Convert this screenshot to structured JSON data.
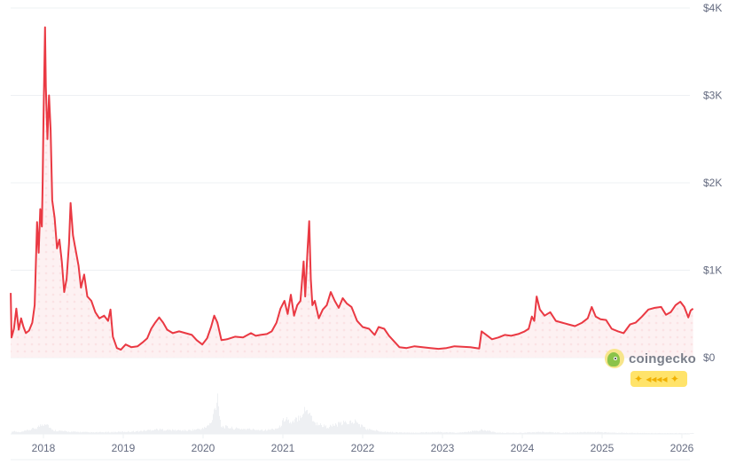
{
  "chart_data": {
    "type": "line",
    "title": "",
    "xlabel": "",
    "ylabel": "",
    "currency": "USD",
    "ylim": [
      0,
      4000
    ],
    "y_ticks": [
      {
        "value": 0,
        "label": "$0"
      },
      {
        "value": 1000,
        "label": "$1K"
      },
      {
        "value": 2000,
        "label": "$2K"
      },
      {
        "value": 3000,
        "label": "$3K"
      },
      {
        "value": 4000,
        "label": "$4K"
      }
    ],
    "x_ticks": [
      "2018",
      "2019",
      "2020",
      "2021",
      "2022",
      "2023",
      "2024",
      "2025",
      "2026"
    ],
    "xlim": [
      2017.59,
      2026.14
    ],
    "grid": {
      "horizontal": true,
      "vertical": false
    },
    "legend": null,
    "line_color": "#ea3943",
    "fill_color": "#fde8e9",
    "series": [
      {
        "name": "Price",
        "points": [
          [
            2017.59,
            740
          ],
          [
            2017.6,
            230
          ],
          [
            2017.63,
            330
          ],
          [
            2017.66,
            560
          ],
          [
            2017.69,
            320
          ],
          [
            2017.72,
            450
          ],
          [
            2017.75,
            350
          ],
          [
            2017.78,
            280
          ],
          [
            2017.82,
            310
          ],
          [
            2017.86,
            400
          ],
          [
            2017.89,
            600
          ],
          [
            2017.92,
            1550
          ],
          [
            2017.94,
            1200
          ],
          [
            2017.96,
            1700
          ],
          [
            2017.98,
            1500
          ],
          [
            2017.99,
            2000
          ],
          [
            2018.0,
            2700
          ],
          [
            2018.02,
            3780
          ],
          [
            2018.03,
            3100
          ],
          [
            2018.05,
            2500
          ],
          [
            2018.07,
            3000
          ],
          [
            2018.09,
            2600
          ],
          [
            2018.11,
            1800
          ],
          [
            2018.14,
            1600
          ],
          [
            2018.17,
            1250
          ],
          [
            2018.2,
            1350
          ],
          [
            2018.23,
            1100
          ],
          [
            2018.26,
            750
          ],
          [
            2018.29,
            900
          ],
          [
            2018.32,
            1300
          ],
          [
            2018.34,
            1770
          ],
          [
            2018.37,
            1400
          ],
          [
            2018.4,
            1250
          ],
          [
            2018.44,
            1050
          ],
          [
            2018.47,
            800
          ],
          [
            2018.51,
            950
          ],
          [
            2018.55,
            700
          ],
          [
            2018.6,
            650
          ],
          [
            2018.65,
            520
          ],
          [
            2018.7,
            450
          ],
          [
            2018.76,
            480
          ],
          [
            2018.81,
            420
          ],
          [
            2018.84,
            550
          ],
          [
            2018.87,
            240
          ],
          [
            2018.92,
            110
          ],
          [
            2018.97,
            90
          ],
          [
            2019.03,
            150
          ],
          [
            2019.1,
            120
          ],
          [
            2019.18,
            130
          ],
          [
            2019.25,
            180
          ],
          [
            2019.3,
            220
          ],
          [
            2019.35,
            330
          ],
          [
            2019.4,
            400
          ],
          [
            2019.45,
            460
          ],
          [
            2019.5,
            400
          ],
          [
            2019.55,
            320
          ],
          [
            2019.62,
            280
          ],
          [
            2019.7,
            300
          ],
          [
            2019.78,
            280
          ],
          [
            2019.86,
            260
          ],
          [
            2019.92,
            200
          ],
          [
            2019.99,
            150
          ],
          [
            2020.05,
            220
          ],
          [
            2020.1,
            350
          ],
          [
            2020.14,
            480
          ],
          [
            2020.18,
            400
          ],
          [
            2020.23,
            200
          ],
          [
            2020.3,
            210
          ],
          [
            2020.4,
            240
          ],
          [
            2020.5,
            230
          ],
          [
            2020.6,
            280
          ],
          [
            2020.66,
            250
          ],
          [
            2020.72,
            260
          ],
          [
            2020.8,
            270
          ],
          [
            2020.86,
            300
          ],
          [
            2020.92,
            400
          ],
          [
            2020.97,
            560
          ],
          [
            2021.02,
            650
          ],
          [
            2021.06,
            500
          ],
          [
            2021.1,
            720
          ],
          [
            2021.14,
            480
          ],
          [
            2021.18,
            600
          ],
          [
            2021.22,
            650
          ],
          [
            2021.26,
            1100
          ],
          [
            2021.28,
            700
          ],
          [
            2021.31,
            1250
          ],
          [
            2021.33,
            1560
          ],
          [
            2021.35,
            900
          ],
          [
            2021.37,
            600
          ],
          [
            2021.4,
            650
          ],
          [
            2021.45,
            450
          ],
          [
            2021.5,
            550
          ],
          [
            2021.55,
            600
          ],
          [
            2021.6,
            750
          ],
          [
            2021.65,
            650
          ],
          [
            2021.7,
            570
          ],
          [
            2021.75,
            680
          ],
          [
            2021.8,
            620
          ],
          [
            2021.86,
            580
          ],
          [
            2021.93,
            420
          ],
          [
            2022.0,
            350
          ],
          [
            2022.08,
            330
          ],
          [
            2022.15,
            260
          ],
          [
            2022.2,
            350
          ],
          [
            2022.27,
            330
          ],
          [
            2022.33,
            250
          ],
          [
            2022.4,
            180
          ],
          [
            2022.46,
            120
          ],
          [
            2022.55,
            110
          ],
          [
            2022.65,
            130
          ],
          [
            2022.75,
            120
          ],
          [
            2022.85,
            110
          ],
          [
            2022.95,
            100
          ],
          [
            2023.05,
            110
          ],
          [
            2023.15,
            130
          ],
          [
            2023.25,
            125
          ],
          [
            2023.35,
            120
          ],
          [
            2023.46,
            105
          ],
          [
            2023.49,
            300
          ],
          [
            2023.55,
            260
          ],
          [
            2023.62,
            210
          ],
          [
            2023.7,
            230
          ],
          [
            2023.78,
            260
          ],
          [
            2023.86,
            250
          ],
          [
            2023.95,
            270
          ],
          [
            2024.03,
            300
          ],
          [
            2024.08,
            330
          ],
          [
            2024.12,
            470
          ],
          [
            2024.15,
            420
          ],
          [
            2024.18,
            700
          ],
          [
            2024.22,
            550
          ],
          [
            2024.28,
            480
          ],
          [
            2024.35,
            520
          ],
          [
            2024.42,
            420
          ],
          [
            2024.5,
            400
          ],
          [
            2024.58,
            380
          ],
          [
            2024.66,
            360
          ],
          [
            2024.75,
            400
          ],
          [
            2024.82,
            450
          ],
          [
            2024.87,
            580
          ],
          [
            2024.92,
            470
          ],
          [
            2024.98,
            440
          ],
          [
            2025.05,
            430
          ],
          [
            2025.12,
            330
          ],
          [
            2025.2,
            300
          ],
          [
            2025.27,
            280
          ],
          [
            2025.35,
            380
          ],
          [
            2025.42,
            400
          ],
          [
            2025.5,
            470
          ],
          [
            2025.58,
            550
          ],
          [
            2025.66,
            570
          ],
          [
            2025.74,
            580
          ],
          [
            2025.8,
            490
          ],
          [
            2025.86,
            520
          ],
          [
            2025.92,
            600
          ],
          [
            2025.98,
            640
          ],
          [
            2026.03,
            580
          ],
          [
            2026.08,
            460
          ],
          [
            2026.11,
            540
          ],
          [
            2026.14,
            560
          ]
        ]
      },
      {
        "name": "Volume",
        "axis": "secondary-bottom",
        "color": "#eef0f3",
        "points": [
          [
            2017.59,
            0.08
          ],
          [
            2017.7,
            0.04
          ],
          [
            2017.9,
            0.15
          ],
          [
            2017.99,
            0.26
          ],
          [
            2018.03,
            0.3
          ],
          [
            2018.1,
            0.1
          ],
          [
            2018.3,
            0.06
          ],
          [
            2018.6,
            0.04
          ],
          [
            2018.9,
            0.05
          ],
          [
            2019.2,
            0.07
          ],
          [
            2019.4,
            0.12
          ],
          [
            2019.6,
            0.1
          ],
          [
            2019.8,
            0.09
          ],
          [
            2020.0,
            0.14
          ],
          [
            2020.1,
            0.28
          ],
          [
            2020.18,
            1.0
          ],
          [
            2020.22,
            0.2
          ],
          [
            2020.4,
            0.14
          ],
          [
            2020.6,
            0.12
          ],
          [
            2020.8,
            0.1
          ],
          [
            2020.95,
            0.16
          ],
          [
            2021.03,
            0.45
          ],
          [
            2021.1,
            0.25
          ],
          [
            2021.15,
            0.35
          ],
          [
            2021.26,
            0.6
          ],
          [
            2021.33,
            0.62
          ],
          [
            2021.38,
            0.3
          ],
          [
            2021.55,
            0.18
          ],
          [
            2021.75,
            0.28
          ],
          [
            2021.9,
            0.32
          ],
          [
            2022.05,
            0.12
          ],
          [
            2022.3,
            0.05
          ],
          [
            2022.6,
            0.03
          ],
          [
            2022.9,
            0.05
          ],
          [
            2023.2,
            0.03
          ],
          [
            2023.5,
            0.1
          ],
          [
            2023.7,
            0.03
          ],
          [
            2024.0,
            0.03
          ],
          [
            2024.2,
            0.05
          ],
          [
            2024.5,
            0.03
          ],
          [
            2024.9,
            0.05
          ],
          [
            2025.2,
            0.03
          ],
          [
            2025.6,
            0.02
          ],
          [
            2026.0,
            0.02
          ],
          [
            2026.14,
            0.02
          ]
        ]
      }
    ]
  },
  "watermark": {
    "brand": "coingecko",
    "badge_glyphs": "✦ ◂◂◂◂ ✦"
  }
}
